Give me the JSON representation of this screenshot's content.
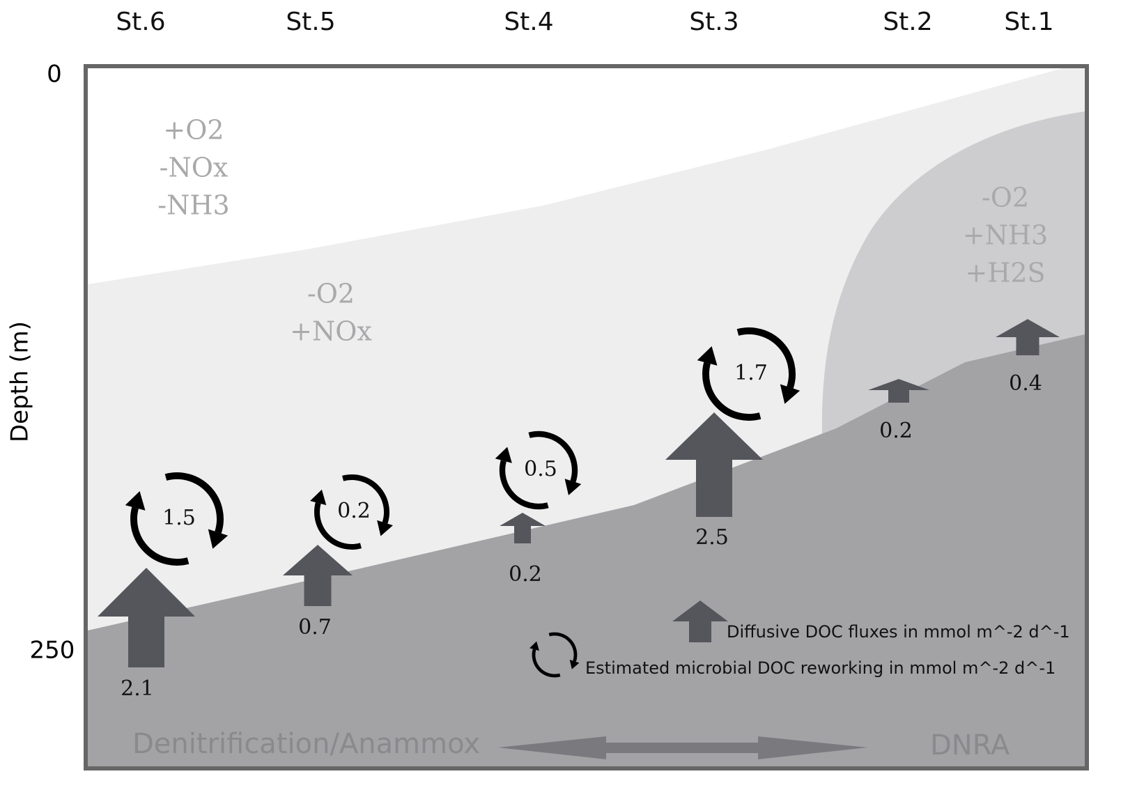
{
  "axis": {
    "label": "Depth (m)",
    "ticks": [
      "0",
      "250"
    ]
  },
  "stations": [
    {
      "name": "St.6",
      "flux": "2.1",
      "reworking": "1.5"
    },
    {
      "name": "St.5",
      "flux": "0.7",
      "reworking": "0.2"
    },
    {
      "name": "St.4",
      "flux": "0.2",
      "reworking": "0.5"
    },
    {
      "name": "St.3",
      "flux": "2.5",
      "reworking": "1.7"
    },
    {
      "name": "St.2",
      "flux": "0.2"
    },
    {
      "name": "St.1",
      "flux": "0.4"
    }
  ],
  "zones": [
    {
      "lines": [
        "+O2",
        "-NOx",
        "-NH3"
      ]
    },
    {
      "lines": [
        "-O2",
        "+NOx"
      ]
    },
    {
      "lines": [
        "-O2",
        "+NH3",
        "+H2S"
      ]
    }
  ],
  "legend": {
    "flux": "Diffusive DOC fluxes in mmol m^-2 d^-1",
    "reworking": "Estimated microbial DOC reworking in mmol m^-2 d^-1"
  },
  "processes": [
    "Denitrification/Anammox",
    "DNRA"
  ]
}
